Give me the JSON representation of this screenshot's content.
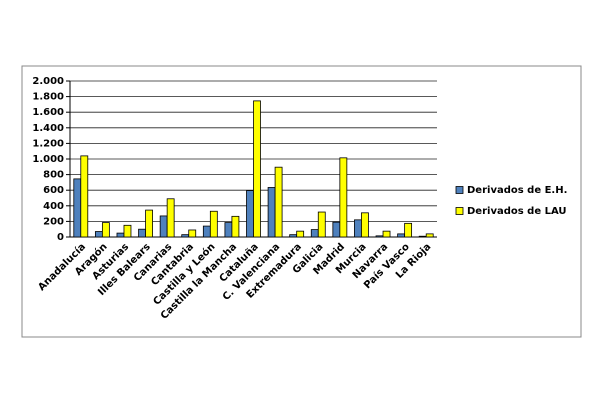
{
  "chart_data": {
    "type": "bar",
    "categories": [
      "Anadalucía",
      "Aragón",
      "Asturias",
      "Illes Balears",
      "Canarias",
      "Cantabria",
      "Castilla y León",
      "Castilla la Mancha",
      "Cataluña",
      "C. Valenciana",
      "Extremadura",
      "Galicia",
      "Madrid",
      "Murcia",
      "Navarra",
      "País Vasco",
      "La Rioja"
    ],
    "series": [
      {
        "name": "Derivados de E.H.",
        "color": "#4f81bd",
        "values": [
          745,
          70,
          50,
          100,
          270,
          30,
          140,
          185,
          595,
          635,
          30,
          95,
          190,
          220,
          15,
          40,
          10
        ]
      },
      {
        "name": "Derivados de LAU",
        "color": "#ffff00",
        "values": [
          1040,
          185,
          150,
          345,
          490,
          90,
          330,
          265,
          1745,
          895,
          75,
          320,
          1015,
          310,
          75,
          175,
          40
        ]
      }
    ],
    "ylim": [
      0,
      2000
    ],
    "yticks": [
      0,
      200,
      400,
      600,
      800,
      {
        "value": 1000,
        "label": "1.000"
      },
      {
        "value": 1200,
        "label": "1.200"
      },
      {
        "value": 1400,
        "label": "1.400"
      },
      {
        "value": 1600,
        "label": "1.600"
      },
      {
        "value": 1800,
        "label": "1.800"
      },
      {
        "value": 2000,
        "label": "2.000"
      }
    ],
    "grid": true,
    "legend": "right"
  }
}
